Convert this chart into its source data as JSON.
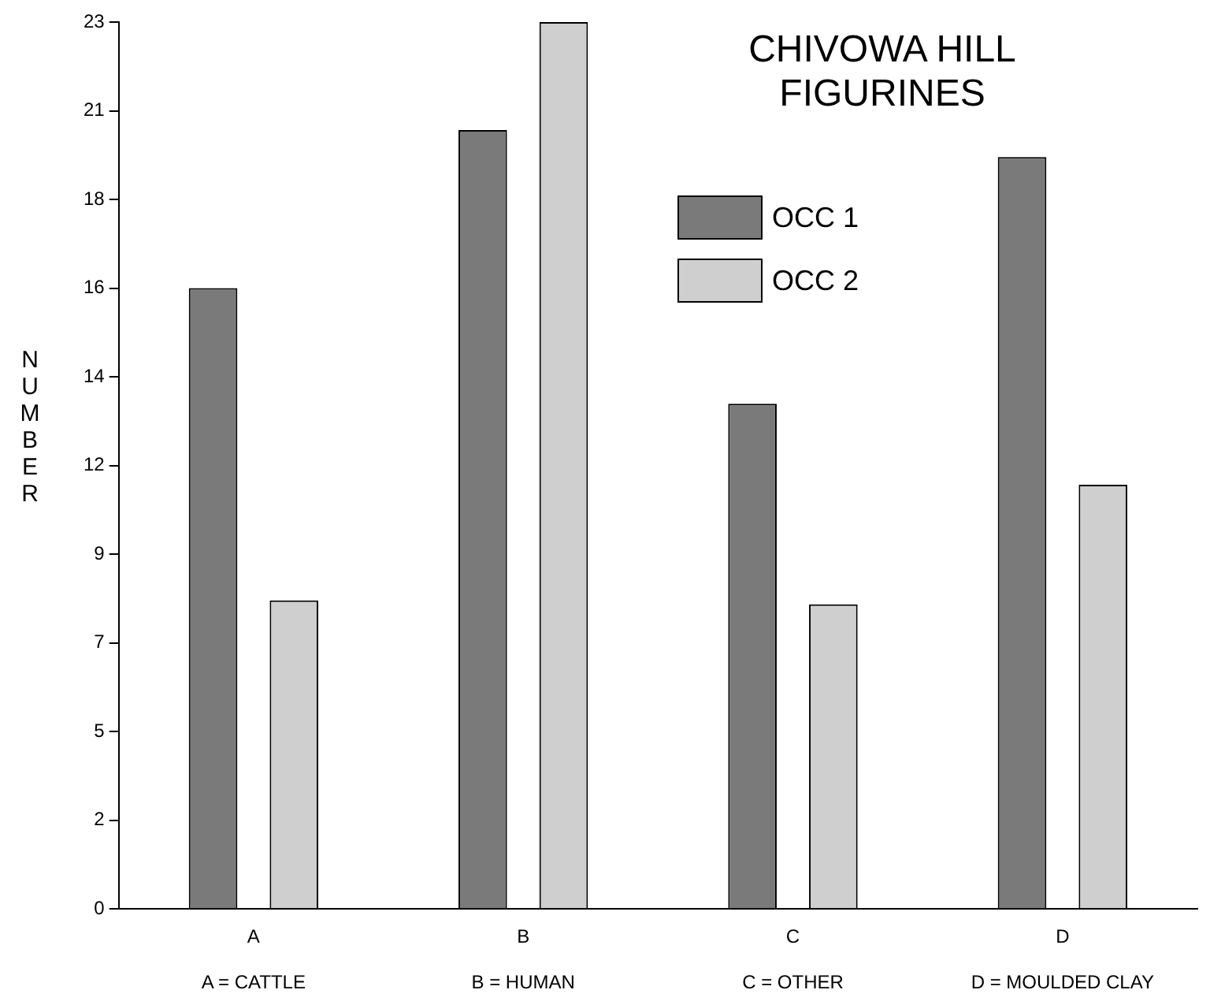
{
  "chart_data": {
    "type": "bar",
    "title": "CHIVOWA HILL\nFIGURINES",
    "ylabel": "NUMBER",
    "categories": [
      "A",
      "B",
      "C",
      "D"
    ],
    "series": [
      {
        "name": "OCC 1",
        "color": "#7a7a7a",
        "values": [
          16.1,
          20.2,
          13.1,
          19.5
        ]
      },
      {
        "name": "OCC 2",
        "color": "#cfcfcf",
        "values": [
          8,
          23,
          7.9,
          11
        ]
      }
    ],
    "ylim": [
      0,
      23
    ],
    "yticks": [
      0,
      {
        "value": 2.3,
        "label": "2"
      },
      {
        "value": 4.6,
        "label": "5"
      },
      {
        "value": 6.9,
        "label": "7"
      },
      {
        "value": 9.2,
        "label": "9"
      },
      {
        "value": 11.5,
        "label": "12"
      },
      {
        "value": 13.8,
        "label": "14"
      },
      {
        "value": 16.1,
        "label": "16"
      },
      {
        "value": 18.4,
        "label": "18"
      },
      {
        "value": 20.7,
        "label": "21"
      },
      23
    ],
    "annotations": [
      "A = CATTLE",
      "B = HUMAN",
      "C = OTHER",
      "D = MOULDED CLAY"
    ],
    "legend": "top right",
    "grid": false
  }
}
